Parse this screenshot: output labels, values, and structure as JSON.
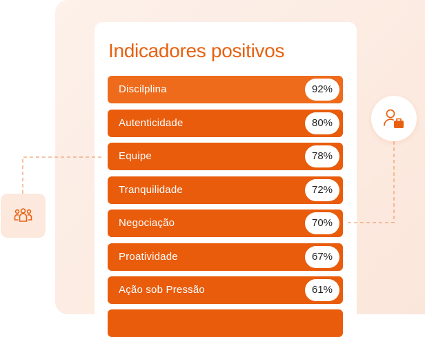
{
  "title": "Indicadores positivos",
  "items": [
    {
      "label": "Discilplina",
      "value": "92%"
    },
    {
      "label": "Autenticidade",
      "value": "80%"
    },
    {
      "label": "Equipe",
      "value": "78%"
    },
    {
      "label": "Tranquilidade",
      "value": "72%"
    },
    {
      "label": "Negociação",
      "value": "70%"
    },
    {
      "label": "Proatividade",
      "value": "67%"
    },
    {
      "label": "Ação sob Pressão",
      "value": "61%"
    }
  ]
}
